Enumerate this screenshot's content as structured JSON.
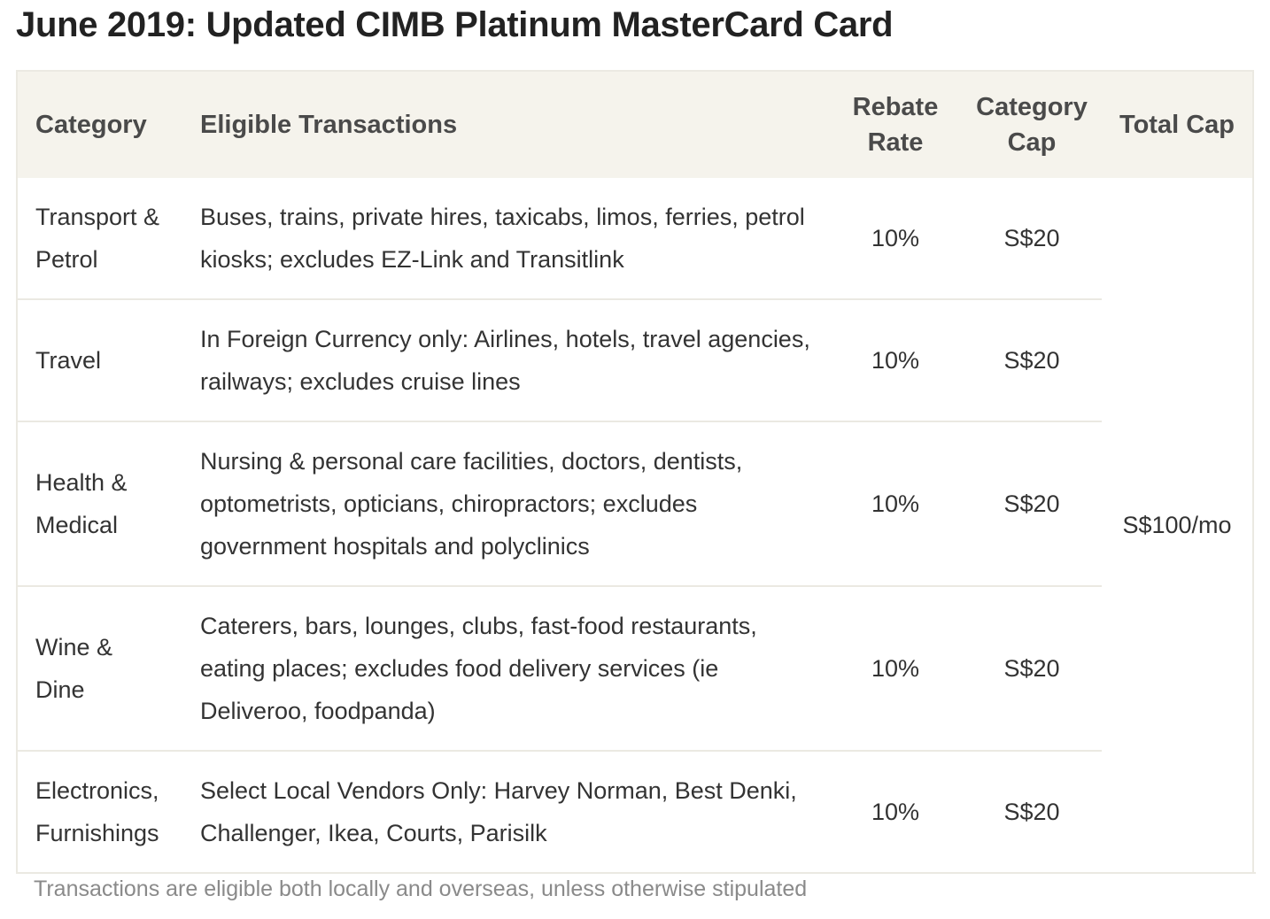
{
  "title": "June 2019: Updated CIMB Platinum MasterCard Card",
  "table": {
    "headers": {
      "category": "Category",
      "eligible": "Eligible Transactions",
      "rebate": "Rebate Rate",
      "category_cap": "Category Cap",
      "total_cap": "Total Cap"
    },
    "rows": [
      {
        "category": "Transport & Petrol",
        "eligible": "Buses, trains, private hires, taxicabs, limos, ferries, petrol kiosks; excludes EZ-Link and Transitlink",
        "rebate": "10%",
        "cap": "S$20"
      },
      {
        "category": "Travel",
        "eligible": "In Foreign Currency only: Airlines, hotels, travel agencies, railways; excludes cruise lines",
        "rebate": "10%",
        "cap": "S$20"
      },
      {
        "category": "Health & Medical",
        "eligible": "Nursing & personal care facilities, doctors, dentists, optometrists, opticians, chiropractors; excludes government hospitals and polyclinics",
        "rebate": "10%",
        "cap": "S$20"
      },
      {
        "category": "Wine & Dine",
        "eligible": "Caterers, bars, lounges, clubs, fast-food restaurants, eating places; excludes food delivery services (ie Deliveroo, foodpanda)",
        "rebate": "10%",
        "cap": "S$20"
      },
      {
        "category": "Electronics, Furnishings",
        "eligible": "Select Local Vendors Only: Harvey Norman, Best Denki, Challenger, Ikea, Courts, Parisilk",
        "rebate": "10%",
        "cap": "S$20"
      }
    ],
    "total_cap": "S$100/mo"
  },
  "footnote": "Transactions are eligible both locally and overseas, unless otherwise stipulated"
}
